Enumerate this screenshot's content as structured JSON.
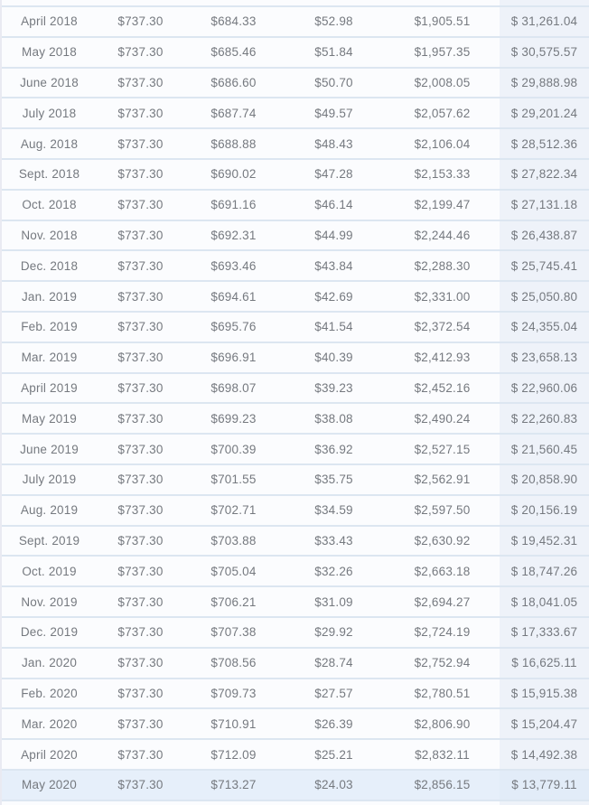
{
  "colors": {
    "row_bg": "#fbfcfe",
    "row_border": "#dce6f1",
    "last_col_bg": "#eef2f9",
    "hover_bg": "#e6effa",
    "hover_last_col_bg": "#e2ecf8",
    "text_color": "#75797f",
    "left_border": "#e9eaf2"
  },
  "table": {
    "description": "amortization-schedule-table",
    "rows": [
      {
        "month": "April 2018",
        "payment": "$737.30",
        "principal": "$684.33",
        "interest": "$52.98",
        "total_interest": "$1,905.51",
        "balance": "$ 31,261.04",
        "highlighted": false
      },
      {
        "month": "May 2018",
        "payment": "$737.30",
        "principal": "$685.46",
        "interest": "$51.84",
        "total_interest": "$1,957.35",
        "balance": "$ 30,575.57",
        "highlighted": false
      },
      {
        "month": "June 2018",
        "payment": "$737.30",
        "principal": "$686.60",
        "interest": "$50.70",
        "total_interest": "$2,008.05",
        "balance": "$ 29,888.98",
        "highlighted": false
      },
      {
        "month": "July 2018",
        "payment": "$737.30",
        "principal": "$687.74",
        "interest": "$49.57",
        "total_interest": "$2,057.62",
        "balance": "$ 29,201.24",
        "highlighted": false
      },
      {
        "month": "Aug. 2018",
        "payment": "$737.30",
        "principal": "$688.88",
        "interest": "$48.43",
        "total_interest": "$2,106.04",
        "balance": "$ 28,512.36",
        "highlighted": false
      },
      {
        "month": "Sept. 2018",
        "payment": "$737.30",
        "principal": "$690.02",
        "interest": "$47.28",
        "total_interest": "$2,153.33",
        "balance": "$ 27,822.34",
        "highlighted": false
      },
      {
        "month": "Oct. 2018",
        "payment": "$737.30",
        "principal": "$691.16",
        "interest": "$46.14",
        "total_interest": "$2,199.47",
        "balance": "$ 27,131.18",
        "highlighted": false
      },
      {
        "month": "Nov. 2018",
        "payment": "$737.30",
        "principal": "$692.31",
        "interest": "$44.99",
        "total_interest": "$2,244.46",
        "balance": "$ 26,438.87",
        "highlighted": false
      },
      {
        "month": "Dec. 2018",
        "payment": "$737.30",
        "principal": "$693.46",
        "interest": "$43.84",
        "total_interest": "$2,288.30",
        "balance": "$ 25,745.41",
        "highlighted": false
      },
      {
        "month": "Jan. 2019",
        "payment": "$737.30",
        "principal": "$694.61",
        "interest": "$42.69",
        "total_interest": "$2,331.00",
        "balance": "$ 25,050.80",
        "highlighted": false
      },
      {
        "month": "Feb. 2019",
        "payment": "$737.30",
        "principal": "$695.76",
        "interest": "$41.54",
        "total_interest": "$2,372.54",
        "balance": "$ 24,355.04",
        "highlighted": false
      },
      {
        "month": "Mar. 2019",
        "payment": "$737.30",
        "principal": "$696.91",
        "interest": "$40.39",
        "total_interest": "$2,412.93",
        "balance": "$ 23,658.13",
        "highlighted": false
      },
      {
        "month": "April 2019",
        "payment": "$737.30",
        "principal": "$698.07",
        "interest": "$39.23",
        "total_interest": "$2,452.16",
        "balance": "$ 22,960.06",
        "highlighted": false
      },
      {
        "month": "May 2019",
        "payment": "$737.30",
        "principal": "$699.23",
        "interest": "$38.08",
        "total_interest": "$2,490.24",
        "balance": "$ 22,260.83",
        "highlighted": false
      },
      {
        "month": "June 2019",
        "payment": "$737.30",
        "principal": "$700.39",
        "interest": "$36.92",
        "total_interest": "$2,527.15",
        "balance": "$ 21,560.45",
        "highlighted": false
      },
      {
        "month": "July 2019",
        "payment": "$737.30",
        "principal": "$701.55",
        "interest": "$35.75",
        "total_interest": "$2,562.91",
        "balance": "$ 20,858.90",
        "highlighted": false
      },
      {
        "month": "Aug. 2019",
        "payment": "$737.30",
        "principal": "$702.71",
        "interest": "$34.59",
        "total_interest": "$2,597.50",
        "balance": "$ 20,156.19",
        "highlighted": false
      },
      {
        "month": "Sept. 2019",
        "payment": "$737.30",
        "principal": "$703.88",
        "interest": "$33.43",
        "total_interest": "$2,630.92",
        "balance": "$ 19,452.31",
        "highlighted": false
      },
      {
        "month": "Oct. 2019",
        "payment": "$737.30",
        "principal": "$705.04",
        "interest": "$32.26",
        "total_interest": "$2,663.18",
        "balance": "$ 18,747.26",
        "highlighted": false
      },
      {
        "month": "Nov. 2019",
        "payment": "$737.30",
        "principal": "$706.21",
        "interest": "$31.09",
        "total_interest": "$2,694.27",
        "balance": "$ 18,041.05",
        "highlighted": false
      },
      {
        "month": "Dec. 2019",
        "payment": "$737.30",
        "principal": "$707.38",
        "interest": "$29.92",
        "total_interest": "$2,724.19",
        "balance": "$ 17,333.67",
        "highlighted": false
      },
      {
        "month": "Jan. 2020",
        "payment": "$737.30",
        "principal": "$708.56",
        "interest": "$28.74",
        "total_interest": "$2,752.94",
        "balance": "$ 16,625.11",
        "highlighted": false
      },
      {
        "month": "Feb. 2020",
        "payment": "$737.30",
        "principal": "$709.73",
        "interest": "$27.57",
        "total_interest": "$2,780.51",
        "balance": "$ 15,915.38",
        "highlighted": false
      },
      {
        "month": "Mar. 2020",
        "payment": "$737.30",
        "principal": "$710.91",
        "interest": "$26.39",
        "total_interest": "$2,806.90",
        "balance": "$ 15,204.47",
        "highlighted": false
      },
      {
        "month": "April 2020",
        "payment": "$737.30",
        "principal": "$712.09",
        "interest": "$25.21",
        "total_interest": "$2,832.11",
        "balance": "$ 14,492.38",
        "highlighted": false
      },
      {
        "month": "May 2020",
        "payment": "$737.30",
        "principal": "$713.27",
        "interest": "$24.03",
        "total_interest": "$2,856.15",
        "balance": "$ 13,779.11",
        "highlighted": true
      }
    ]
  }
}
